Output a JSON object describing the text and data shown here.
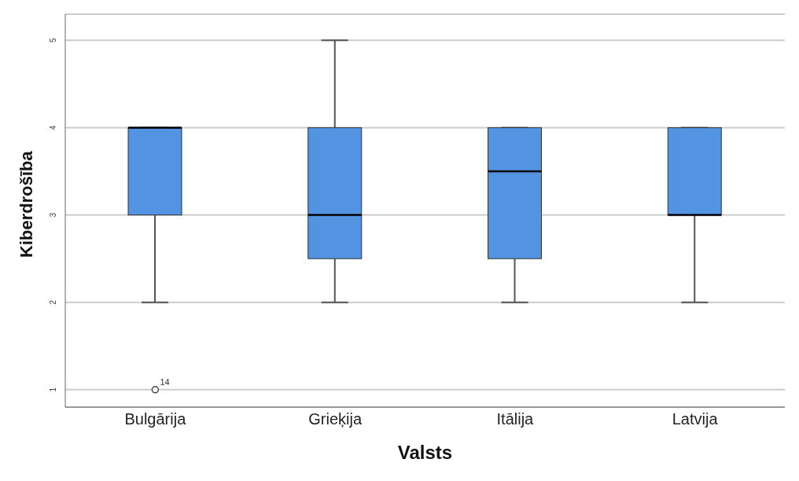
{
  "chart_data": {
    "type": "box",
    "xlabel": "Valsts",
    "ylabel": "Kiberdrošība",
    "categories": [
      "Bulgārija",
      "Grieķija",
      "Itālija",
      "Latvija"
    ],
    "boxes": [
      {
        "low": 2,
        "q1": 3,
        "median": 4,
        "q3": 4,
        "high": 4,
        "outliers": [
          1
        ]
      },
      {
        "low": 2,
        "q1": 2.5,
        "median": 3,
        "q3": 4,
        "high": 5
      },
      {
        "low": 2,
        "q1": 2.5,
        "median": 3.5,
        "q3": 4,
        "high": 4
      },
      {
        "low": 2,
        "q1": 3,
        "median": 3,
        "q3": 4,
        "high": 4
      }
    ],
    "color": "#5294e2",
    "ylim": [
      0.8,
      5.3
    ],
    "yticks": [
      1,
      2,
      3,
      4,
      5
    ],
    "grid": "y",
    "legend": false,
    "annotations": [
      "14"
    ]
  }
}
